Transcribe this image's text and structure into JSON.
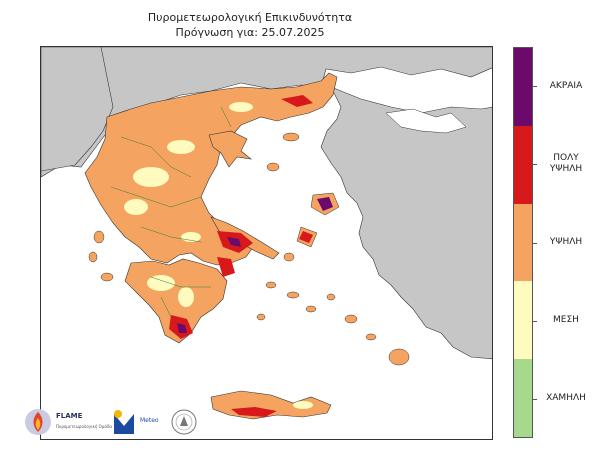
{
  "header": {
    "title": "Πυρομετεωρολογική Επικινδυνότητα",
    "subtitle": "Πρόγνωση για: 25.07.2025"
  },
  "legend": {
    "levels": [
      {
        "label": "ΑΚΡΑΙΑ",
        "color": "#6b0a6b"
      },
      {
        "label": "ΠΟΛΥ ΥΨΗΛΗ",
        "color": "#d7191c"
      },
      {
        "label": "ΥΨΗΛΗ",
        "color": "#f4a460"
      },
      {
        "label": "ΜΕΣΗ",
        "color": "#fffbbf"
      },
      {
        "label": "ΧΑΜΗΛΗ",
        "color": "#a6d98c"
      }
    ]
  },
  "map": {
    "land_color": "#c6c6c6",
    "sea_color": "#ffffff",
    "boundary_color": "#2e7d32"
  },
  "logos": {
    "flame_title": "FLAME",
    "flame_sub": "Πυρομετεωρολογική Ομάδα",
    "meteo_text": "Meteo"
  }
}
